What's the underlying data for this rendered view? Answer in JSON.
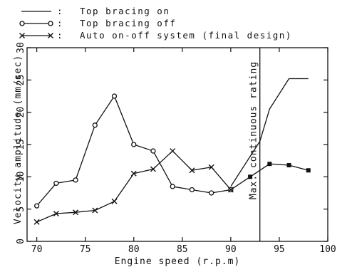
{
  "chart_data": {
    "type": "line",
    "xlabel": "Engine speed (r.p.m)",
    "ylabel": "Velocity amplitude (mm/sec)",
    "xlim": [
      69,
      100
    ],
    "ylim": [
      0,
      30
    ],
    "x_ticks": [
      70,
      75,
      80,
      85,
      90,
      95,
      100
    ],
    "y_ticks": [
      0,
      5,
      10,
      15,
      20,
      25,
      30
    ],
    "grid": false,
    "legend_position": "top-left, above plot",
    "series": [
      {
        "name": "Top bracing on",
        "marker": "none",
        "x": [
          90,
          93,
          94,
          96,
          98
        ],
        "y": [
          8.5,
          15.5,
          20.5,
          25.2,
          25.2
        ]
      },
      {
        "name": "Top bracing off",
        "marker": "circle",
        "x": [
          70,
          72,
          74,
          76,
          78,
          80,
          82,
          84,
          86,
          88,
          90
        ],
        "y": [
          5.5,
          9.0,
          9.5,
          18.0,
          22.5,
          15.0,
          14.0,
          8.5,
          8.0,
          7.5,
          8.0
        ]
      },
      {
        "name": "Auto on-off system (final design)",
        "marker": "x",
        "x": [
          70,
          72,
          74,
          76,
          78,
          80,
          82,
          84,
          86,
          88,
          90,
          92,
          94,
          96,
          98
        ],
        "y": [
          3.0,
          4.3,
          4.5,
          4.8,
          6.2,
          10.5,
          11.2,
          14.0,
          11.0,
          11.5,
          8.0,
          10.0,
          12.0,
          11.8,
          11.0
        ],
        "marker_after_x": {
          "from": 92,
          "marker": "filled-square"
        }
      }
    ],
    "annotations": [
      {
        "text": "Max. continuous rating",
        "x": 93,
        "orientation": "vertical line with rotated label"
      }
    ],
    "legend_separator": ":"
  }
}
